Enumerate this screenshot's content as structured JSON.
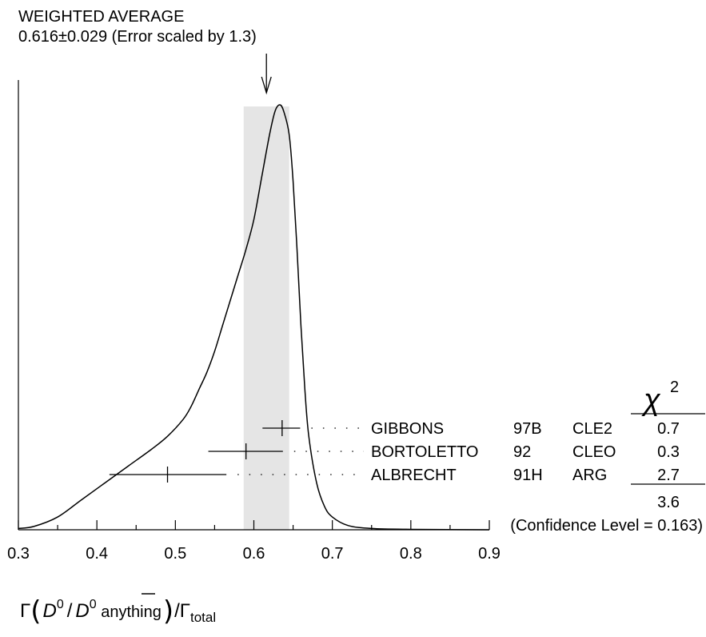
{
  "chart_data": {
    "type": "ideogram",
    "title_line1": "WEIGHTED AVERAGE",
    "title_line2": "0.616±0.029 (Error scaled by 1.3)",
    "weighted_average": 0.616,
    "band": [
      0.587,
      0.645
    ],
    "xlim": [
      0.3,
      0.9
    ],
    "x_ticks": [
      "0.3",
      "0.4",
      "0.5",
      "0.6",
      "0.7",
      "0.8",
      "0.9"
    ],
    "xlabel": "Γ(D⁰/D̄⁰ anything)/Γtotal",
    "xlabel_parts": {
      "gamma": "Γ",
      "d": "D",
      "sup0": "0",
      "slash": "/",
      "dbar": "D",
      "sup0b": "0",
      "anything": " anything",
      "gamma_total": "Γ",
      "total": "total"
    },
    "chi2_header": "χ",
    "chi2_header_sup": "2",
    "measurements": [
      {
        "author": "GIBBONS",
        "year": "97B",
        "experiment": "CLE2",
        "value": 0.636,
        "err_low": 0.025,
        "err_high": 0.023,
        "chi2": "0.7"
      },
      {
        "author": "BORTOLETTO",
        "year": "92",
        "experiment": "CLEO",
        "value": 0.59,
        "err_low": 0.048,
        "err_high": 0.047,
        "chi2": "0.3"
      },
      {
        "author": "ALBRECHT",
        "year": "91H",
        "experiment": "ARG",
        "value": 0.49,
        "err_low": 0.074,
        "err_high": 0.075,
        "chi2": "2.7"
      }
    ],
    "chi2_total": "3.6",
    "confidence_level": "(Confidence Level = 0.163)",
    "ideogram_curve": [
      [
        0.3,
        0.003
      ],
      [
        0.32,
        0.008
      ],
      [
        0.35,
        0.03
      ],
      [
        0.38,
        0.07
      ],
      [
        0.41,
        0.11
      ],
      [
        0.44,
        0.15
      ],
      [
        0.47,
        0.19
      ],
      [
        0.49,
        0.22
      ],
      [
        0.51,
        0.26
      ],
      [
        0.52,
        0.29
      ],
      [
        0.53,
        0.33
      ],
      [
        0.54,
        0.37
      ],
      [
        0.55,
        0.42
      ],
      [
        0.56,
        0.48
      ],
      [
        0.57,
        0.54
      ],
      [
        0.58,
        0.6
      ],
      [
        0.59,
        0.66
      ],
      [
        0.6,
        0.73
      ],
      [
        0.61,
        0.83
      ],
      [
        0.62,
        0.93
      ],
      [
        0.627,
        0.985
      ],
      [
        0.633,
        1.0
      ],
      [
        0.638,
        0.985
      ],
      [
        0.645,
        0.93
      ],
      [
        0.65,
        0.82
      ],
      [
        0.655,
        0.66
      ],
      [
        0.66,
        0.48
      ],
      [
        0.665,
        0.33
      ],
      [
        0.67,
        0.22
      ],
      [
        0.68,
        0.11
      ],
      [
        0.69,
        0.055
      ],
      [
        0.7,
        0.03
      ],
      [
        0.72,
        0.01
      ],
      [
        0.75,
        0.003
      ],
      [
        0.8,
        0.001
      ],
      [
        0.9,
        0.0
      ]
    ]
  }
}
